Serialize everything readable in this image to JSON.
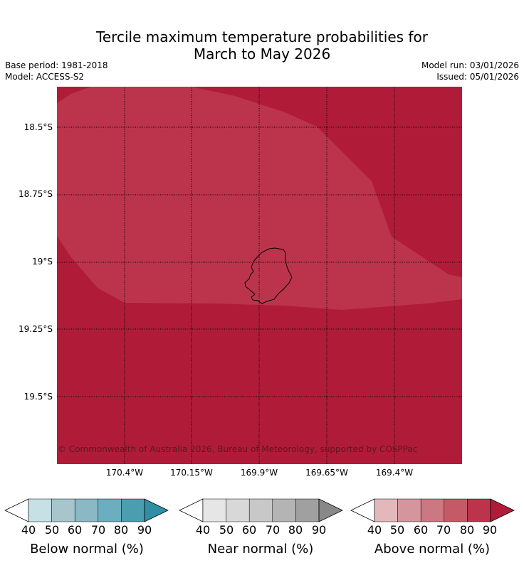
{
  "title": {
    "line1": "Tercile maximum temperature probabilities for",
    "line2": "March to May 2026"
  },
  "meta": {
    "base_period": "Base period: 1981-2018",
    "model": "Model: ACCESS-S2",
    "model_run": "Model run: 03/01/2026",
    "issued": "Issued: 05/01/2026"
  },
  "map": {
    "lat_labels": [
      "18.5°S",
      "18.75°S",
      "19°S",
      "19.25°S",
      "19.5°S"
    ],
    "lon_labels": [
      "170.4°W",
      "170.15°W",
      "169.9°W",
      "169.65°W",
      "169.4°W"
    ],
    "copyright": "© Commonwealth of Australia 2026, Bureau of Meteorology, supported by COSPPac",
    "colors": {
      "above_90": "#b01c38",
      "above_80": "#bc344b"
    }
  },
  "colorbars": {
    "tick_labels": [
      "40",
      "50",
      "60",
      "70",
      "80",
      "90"
    ],
    "below": {
      "title": "Below normal (%)",
      "colors": [
        "#ffffff",
        "#c6e0e6",
        "#a6c6cc",
        "#8ab8c4",
        "#6aaebf",
        "#4a9eb0",
        "#2f8fa4"
      ]
    },
    "near": {
      "title": "Near normal (%)",
      "colors": [
        "#ffffff",
        "#e6e6e6",
        "#d8d8d8",
        "#c8c8c8",
        "#b4b4b4",
        "#a0a0a0",
        "#888888"
      ]
    },
    "above": {
      "title": "Above normal (%)",
      "colors": [
        "#ffffff",
        "#e2b8bd",
        "#d4959c",
        "#cc7882",
        "#c45a66",
        "#bc344b",
        "#b01c38"
      ]
    }
  }
}
